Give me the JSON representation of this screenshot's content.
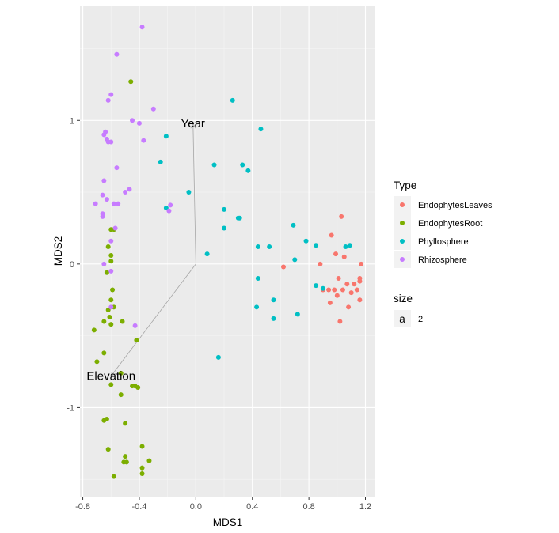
{
  "chart_data": {
    "type": "scatter",
    "xlabel": "MDS1",
    "ylabel": "MDS2",
    "xlim": [
      -0.82,
      1.27
    ],
    "ylim": [
      -1.62,
      1.8
    ],
    "x_ticks": [
      -0.8,
      -0.4,
      0.0,
      0.4,
      0.8,
      1.2
    ],
    "x_tick_labels": [
      "-0.8",
      "-0.4",
      "0.0",
      "0.4",
      "0.8",
      "1.2"
    ],
    "y_ticks": [
      -1,
      0,
      1
    ],
    "y_tick_labels": [
      "-1",
      "0",
      "1"
    ],
    "grid": true,
    "legend_position": "right",
    "legend": {
      "title": "Type",
      "size_title": "size",
      "size_key": "a",
      "size_value": "2"
    },
    "series": [
      {
        "name": "EndophytesLeaves",
        "color": "#F8766D",
        "points": [
          [
            0.62,
            -0.02
          ],
          [
            0.88,
            0.0
          ],
          [
            0.94,
            -0.18
          ],
          [
            0.98,
            -0.18
          ],
          [
            0.99,
            0.07
          ],
          [
            1.01,
            -0.1
          ],
          [
            1.03,
            0.33
          ],
          [
            1.04,
            -0.18
          ],
          [
            1.05,
            0.05
          ],
          [
            1.07,
            -0.14
          ],
          [
            1.08,
            -0.3
          ],
          [
            1.1,
            -0.2
          ],
          [
            1.12,
            -0.14
          ],
          [
            1.14,
            -0.18
          ],
          [
            1.16,
            -0.12
          ],
          [
            1.16,
            -0.25
          ],
          [
            1.17,
            0.0
          ],
          [
            1.16,
            -0.1
          ],
          [
            1.02,
            -0.4
          ],
          [
            0.96,
            0.2
          ],
          [
            0.95,
            -0.27
          ],
          [
            0.9,
            -0.18
          ],
          [
            1.0,
            -0.22
          ]
        ]
      },
      {
        "name": "EndophytesRoot",
        "color": "#7CAE00",
        "points": [
          [
            -0.46,
            1.27
          ],
          [
            -0.6,
            0.24
          ],
          [
            -0.58,
            0.24
          ],
          [
            -0.62,
            0.12
          ],
          [
            -0.6,
            0.06
          ],
          [
            -0.6,
            0.02
          ],
          [
            -0.63,
            -0.06
          ],
          [
            -0.59,
            -0.18
          ],
          [
            -0.6,
            -0.25
          ],
          [
            -0.62,
            -0.32
          ],
          [
            -0.58,
            -0.3
          ],
          [
            -0.61,
            -0.37
          ],
          [
            -0.65,
            -0.4
          ],
          [
            -0.6,
            -0.42
          ],
          [
            -0.52,
            -0.4
          ],
          [
            -0.72,
            -0.46
          ],
          [
            -0.7,
            -0.68
          ],
          [
            -0.65,
            -0.62
          ],
          [
            -0.42,
            -0.53
          ],
          [
            -0.53,
            -0.76
          ],
          [
            -0.6,
            -0.84
          ],
          [
            -0.43,
            -0.85
          ],
          [
            -0.41,
            -0.86
          ],
          [
            -0.53,
            -0.91
          ],
          [
            -0.63,
            -1.08
          ],
          [
            -0.65,
            -1.09
          ],
          [
            -0.5,
            -1.11
          ],
          [
            -0.62,
            -1.29
          ],
          [
            -0.5,
            -1.34
          ],
          [
            -0.51,
            -1.38
          ],
          [
            -0.49,
            -1.38
          ],
          [
            -0.38,
            -1.27
          ],
          [
            -0.33,
            -1.37
          ],
          [
            -0.38,
            -1.42
          ],
          [
            -0.58,
            -1.48
          ],
          [
            -0.38,
            -1.46
          ],
          [
            -0.45,
            -0.85
          ]
        ]
      },
      {
        "name": "Phyllosphere",
        "color": "#00BFC4",
        "points": [
          [
            0.26,
            1.14
          ],
          [
            0.46,
            0.94
          ],
          [
            -0.21,
            0.89
          ],
          [
            -0.25,
            0.71
          ],
          [
            0.13,
            0.69
          ],
          [
            0.33,
            0.69
          ],
          [
            0.37,
            0.65
          ],
          [
            -0.05,
            0.5
          ],
          [
            -0.21,
            0.39
          ],
          [
            0.2,
            0.38
          ],
          [
            0.3,
            0.32
          ],
          [
            0.31,
            0.32
          ],
          [
            0.2,
            0.25
          ],
          [
            0.69,
            0.27
          ],
          [
            0.08,
            0.07
          ],
          [
            0.44,
            0.12
          ],
          [
            0.52,
            0.12
          ],
          [
            0.78,
            0.16
          ],
          [
            0.85,
            0.13
          ],
          [
            1.06,
            0.12
          ],
          [
            1.09,
            0.13
          ],
          [
            0.7,
            0.03
          ],
          [
            0.44,
            -0.1
          ],
          [
            0.55,
            -0.25
          ],
          [
            0.43,
            -0.3
          ],
          [
            0.55,
            -0.38
          ],
          [
            0.72,
            -0.35
          ],
          [
            0.85,
            -0.15
          ],
          [
            0.9,
            -0.17
          ],
          [
            0.16,
            -0.65
          ]
        ]
      },
      {
        "name": "Rhizosphere",
        "color": "#C77CFF",
        "points": [
          [
            -0.38,
            1.65
          ],
          [
            -0.56,
            1.46
          ],
          [
            -0.6,
            1.18
          ],
          [
            -0.62,
            1.14
          ],
          [
            -0.3,
            1.08
          ],
          [
            -0.45,
            1.0
          ],
          [
            -0.4,
            0.98
          ],
          [
            -0.64,
            0.92
          ],
          [
            -0.65,
            0.9
          ],
          [
            -0.63,
            0.87
          ],
          [
            -0.6,
            0.85
          ],
          [
            -0.62,
            0.85
          ],
          [
            -0.37,
            0.86
          ],
          [
            -0.56,
            0.67
          ],
          [
            -0.65,
            0.58
          ],
          [
            -0.66,
            0.48
          ],
          [
            -0.63,
            0.45
          ],
          [
            -0.71,
            0.42
          ],
          [
            -0.55,
            0.42
          ],
          [
            -0.5,
            0.5
          ],
          [
            -0.47,
            0.52
          ],
          [
            -0.58,
            0.42
          ],
          [
            -0.66,
            0.35
          ],
          [
            -0.66,
            0.33
          ],
          [
            -0.57,
            0.25
          ],
          [
            -0.6,
            0.16
          ],
          [
            -0.19,
            0.37
          ],
          [
            -0.18,
            0.41
          ],
          [
            -0.65,
            0.0
          ],
          [
            -0.6,
            -0.05
          ],
          [
            -0.6,
            -0.3
          ],
          [
            -0.43,
            -0.43
          ]
        ]
      }
    ],
    "biplot_arrows": [
      {
        "label": "Year",
        "x": -0.02,
        "y": 0.98
      },
      {
        "label": "Elevation",
        "x": -0.6,
        "y": -0.78
      }
    ]
  }
}
